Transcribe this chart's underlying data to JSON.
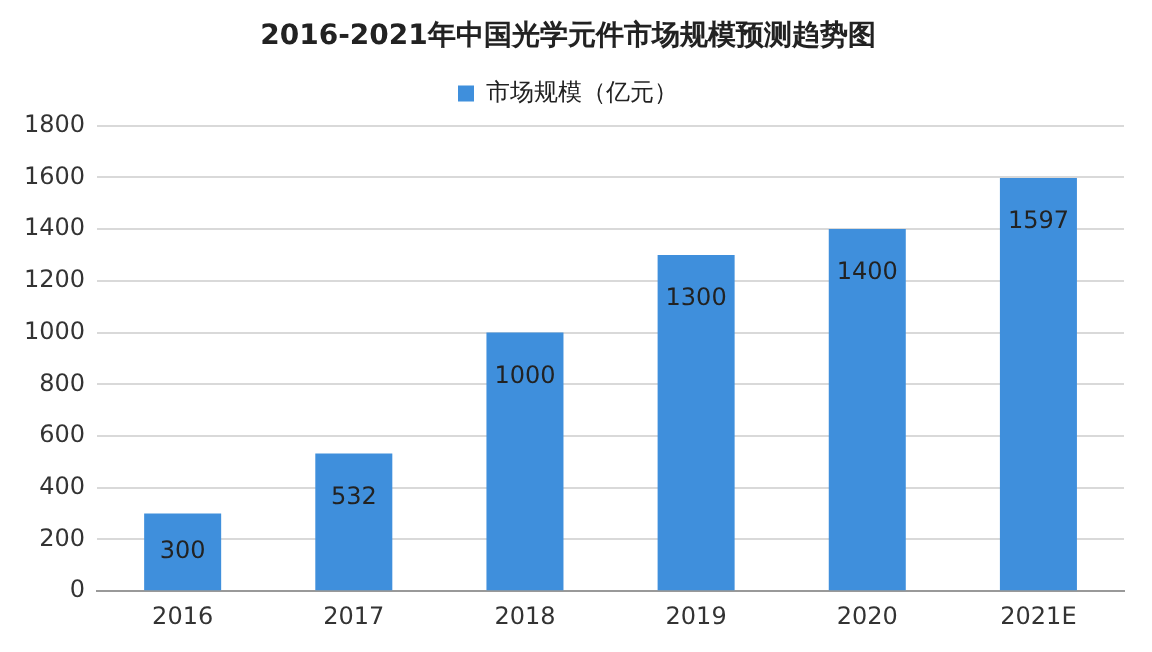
{
  "chart_data": {
    "type": "bar",
    "title": "2016-2021年中国光学元件市场规模预测趋势图",
    "categories": [
      "2016",
      "2017",
      "2018",
      "2019",
      "2020",
      "2021E"
    ],
    "series": [
      {
        "name": "市场规模（亿元）",
        "color": "#3f8fdc",
        "values": [
          300,
          532,
          1000,
          1300,
          1400,
          1597
        ]
      }
    ],
    "ylim": [
      0,
      1800
    ],
    "yticks": [
      0,
      200,
      400,
      600,
      800,
      1000,
      1200,
      1400,
      1600,
      1800
    ],
    "grid": "y",
    "legend": "top",
    "data_labels": true
  }
}
